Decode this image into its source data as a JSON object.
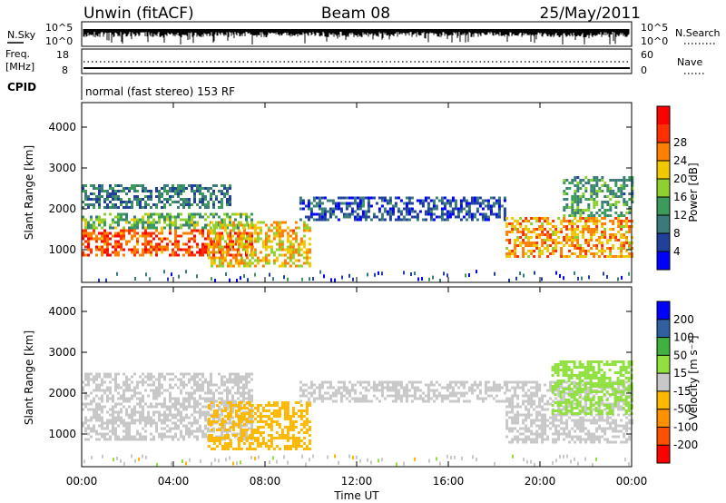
{
  "header": {
    "station": "Unwin (fitACF)",
    "beam": "Beam 08",
    "date": "25/May/2011"
  },
  "nsky_panel": {
    "left_label": "N.Sky",
    "right_label": "N.Search",
    "left_ticks": [
      "10^5",
      "10^0"
    ],
    "right_ticks": [
      "10^5",
      "10^0"
    ]
  },
  "freq_panel": {
    "left_label_top": "Freq.",
    "left_label_bottom": "[MHz]",
    "right_label": "Nave",
    "left_ticks": [
      "18",
      "8"
    ],
    "right_ticks": [
      "60",
      "0"
    ]
  },
  "cpid": {
    "label": "CPID",
    "mode": "normal (fast stereo) 153 RF"
  },
  "colors": {
    "power": [
      "#0000ff",
      "#20409a",
      "#3a7a7a",
      "#3c9a5a",
      "#8fd030",
      "#f0c800",
      "#ff8000",
      "#ff3000",
      "#ff0000"
    ],
    "velocity": [
      "#ff0000",
      "#ff5000",
      "#ff9000",
      "#ffb800",
      "#c8c8c8",
      "#90e040",
      "#40b040",
      "#3060a0",
      "#0000ff"
    ],
    "ground_scatter": "#c8c8c8"
  },
  "icons": {
    "nsearch_legend": "dotted-line-icon",
    "nave_legend": "dotted-line-icon"
  },
  "chart_data": [
    {
      "type": "heatmap",
      "name_of_panel": "power",
      "ylabel": "Slant Range [km]",
      "ylim": [
        200,
        4600
      ],
      "yticks": [
        1000,
        2000,
        3000,
        4000
      ],
      "xlim": [
        0,
        24
      ],
      "xticks": [
        "00:00",
        "04:00",
        "08:00",
        "12:00",
        "16:00",
        "20:00",
        "00:00"
      ],
      "colorbar": {
        "label": "Power [dB]",
        "range": [
          0,
          32
        ],
        "ticks": [
          "4",
          "8",
          "12",
          "16",
          "20",
          "24",
          "28"
        ]
      },
      "regions": [
        {
          "t0": 0.0,
          "t1": 7.4,
          "r0": 850,
          "r1": 1500,
          "value": 26
        },
        {
          "t0": 0.0,
          "t1": 7.4,
          "r0": 1500,
          "r1": 1900,
          "value": 14
        },
        {
          "t0": 0.0,
          "t1": 6.5,
          "r0": 2000,
          "r1": 2600,
          "value": 9
        },
        {
          "t0": 5.5,
          "t1": 10.0,
          "r0": 600,
          "r1": 1700,
          "value": 20
        },
        {
          "t0": 9.5,
          "t1": 18.5,
          "r0": 1700,
          "r1": 2300,
          "value": 6
        },
        {
          "t0": 18.5,
          "t1": 24.0,
          "r0": 800,
          "r1": 1800,
          "value": 22
        },
        {
          "t0": 21.0,
          "t1": 24.0,
          "r0": 1800,
          "r1": 2800,
          "value": 12
        }
      ]
    },
    {
      "type": "heatmap",
      "name_of_panel": "velocity",
      "ylabel": "Slant Range [km]",
      "xlabel": "Time UT",
      "ylim": [
        200,
        4600
      ],
      "yticks": [
        1000,
        2000,
        3000,
        4000
      ],
      "xlim": [
        0,
        24
      ],
      "xticks": [
        "00:00",
        "04:00",
        "08:00",
        "12:00",
        "16:00",
        "20:00",
        "00:00"
      ],
      "colorbar": {
        "label": "Velocity [m s⁻¹]",
        "ticks": [
          "200",
          "100",
          "50",
          "15",
          "-15",
          "-50",
          "-100",
          "-200"
        ]
      },
      "regions": [
        {
          "t0": 0.0,
          "t1": 7.4,
          "r0": 850,
          "r1": 2500,
          "value": 0,
          "ground_scatter": true
        },
        {
          "t0": 5.5,
          "t1": 10.0,
          "r0": 600,
          "r1": 1800,
          "value": -30
        },
        {
          "t0": 9.5,
          "t1": 18.5,
          "r0": 1800,
          "r1": 2300,
          "value": 0,
          "ground_scatter": true
        },
        {
          "t0": 18.5,
          "t1": 24.0,
          "r0": 800,
          "r1": 2300,
          "value": 0,
          "ground_scatter": true
        },
        {
          "t0": 20.5,
          "t1": 24.0,
          "r0": 1500,
          "r1": 2800,
          "value": 30
        }
      ]
    }
  ]
}
